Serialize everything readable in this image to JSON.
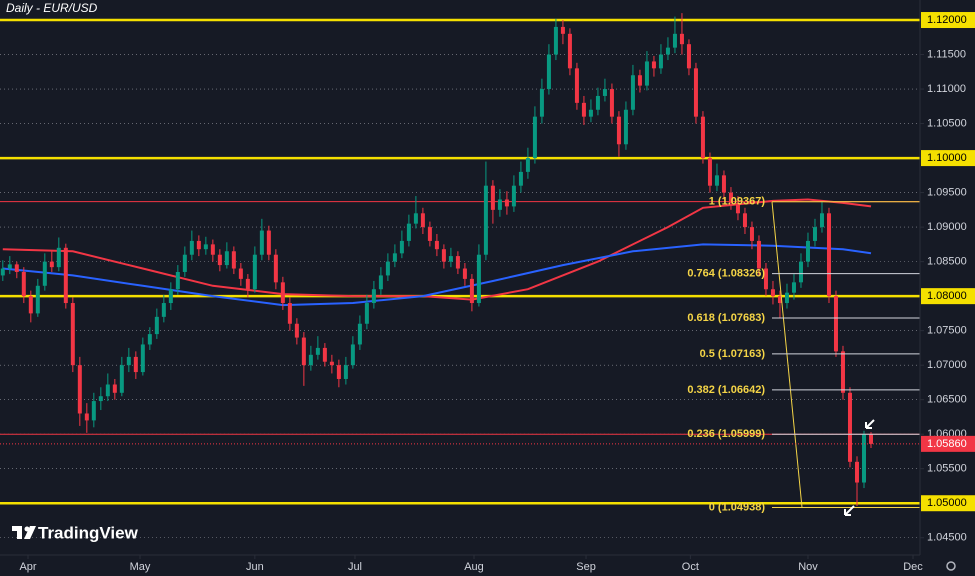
{
  "chart_data": {
    "type": "candlestick",
    "title": "Daily - EUR/USD",
    "logo": "TradingView",
    "xlim": [
      -0.4,
      131
    ],
    "ylim": [
      1.0425,
      1.1229
    ],
    "xticks": [
      {
        "value": 3.6,
        "label": "Apr"
      },
      {
        "value": 19.6,
        "label": "May"
      },
      {
        "value": 36,
        "label": "Jun"
      },
      {
        "value": 50.3,
        "label": "Jul"
      },
      {
        "value": 67.3,
        "label": "Aug"
      },
      {
        "value": 83.3,
        "label": "Sep"
      },
      {
        "value": 98.2,
        "label": "Oct"
      },
      {
        "value": 115,
        "label": "Nov"
      },
      {
        "value": 130,
        "label": "Dec"
      }
    ],
    "yticks": [
      {
        "value": 1.045,
        "label": "1.04500"
      },
      {
        "value": 1.05,
        "label": "1.05000"
      },
      {
        "value": 1.055,
        "label": "1.05500"
      },
      {
        "value": 1.06,
        "label": "1.06000"
      },
      {
        "value": 1.065,
        "label": "1.06500"
      },
      {
        "value": 1.07,
        "label": "1.07000"
      },
      {
        "value": 1.075,
        "label": "1.07500"
      },
      {
        "value": 1.08,
        "label": "1.08000"
      },
      {
        "value": 1.085,
        "label": "1.08500"
      },
      {
        "value": 1.09,
        "label": "1.09000"
      },
      {
        "value": 1.095,
        "label": "1.09500"
      },
      {
        "value": 1.1,
        "label": "1.10000"
      },
      {
        "value": 1.105,
        "label": "1.10500"
      },
      {
        "value": 1.11,
        "label": "1.11000"
      },
      {
        "value": 1.115,
        "label": "1.11500"
      },
      {
        "value": 1.12,
        "label": "1.12000"
      }
    ],
    "grid": true,
    "up_color": "#089981",
    "down_color": "#f23645",
    "key_levels": [
      1.12,
      1.1,
      1.08,
      1.05
    ],
    "key_color": "#f5e000",
    "red_lines": [
      1.0937,
      1.06
    ],
    "last_price": {
      "value": 1.0586,
      "label": "1.05860"
    },
    "ohlc": [
      [
        1.083,
        1.0852,
        1.0822,
        1.084
      ],
      [
        1.084,
        1.0858,
        1.0832,
        1.0846
      ],
      [
        1.0846,
        1.085,
        1.0826,
        1.0835
      ],
      [
        1.0835,
        1.0842,
        1.079,
        1.08
      ],
      [
        1.08,
        1.0808,
        1.0762,
        1.0775
      ],
      [
        1.0775,
        1.0825,
        1.077,
        1.0815
      ],
      [
        1.0815,
        1.0862,
        1.0808,
        1.085
      ],
      [
        1.085,
        1.0866,
        1.0835,
        1.0842
      ],
      [
        1.0842,
        1.0885,
        1.0836,
        1.087
      ],
      [
        1.087,
        1.0876,
        1.0782,
        1.079
      ],
      [
        1.079,
        1.0798,
        1.069,
        1.07
      ],
      [
        1.07,
        1.0712,
        1.0612,
        1.063
      ],
      [
        1.063,
        1.0645,
        1.0602,
        1.062
      ],
      [
        1.062,
        1.066,
        1.061,
        1.0648
      ],
      [
        1.0648,
        1.0668,
        1.0635,
        1.0655
      ],
      [
        1.0655,
        1.0688,
        1.0648,
        1.0672
      ],
      [
        1.0672,
        1.068,
        1.065,
        1.066
      ],
      [
        1.066,
        1.0712,
        1.0655,
        1.07
      ],
      [
        1.07,
        1.0725,
        1.069,
        1.0712
      ],
      [
        1.0712,
        1.072,
        1.068,
        1.069
      ],
      [
        1.069,
        1.074,
        1.0685,
        1.073
      ],
      [
        1.073,
        1.0755,
        1.0722,
        1.0745
      ],
      [
        1.0745,
        1.0782,
        1.0738,
        1.077
      ],
      [
        1.077,
        1.0802,
        1.0762,
        1.079
      ],
      [
        1.079,
        1.082,
        1.078,
        1.081
      ],
      [
        1.081,
        1.0845,
        1.0802,
        1.0835
      ],
      [
        1.0835,
        1.0872,
        1.0828,
        1.086
      ],
      [
        1.086,
        1.0895,
        1.0852,
        1.088
      ],
      [
        1.088,
        1.0888,
        1.0858,
        1.0868
      ],
      [
        1.0868,
        1.0886,
        1.086,
        1.0875
      ],
      [
        1.0875,
        1.0882,
        1.085,
        1.086
      ],
      [
        1.086,
        1.0868,
        1.0836,
        1.0845
      ],
      [
        1.0845,
        1.0878,
        1.084,
        1.0865
      ],
      [
        1.0865,
        1.0872,
        1.0832,
        1.084
      ],
      [
        1.084,
        1.0848,
        1.0815,
        1.0825
      ],
      [
        1.0825,
        1.0832,
        1.0798,
        1.081
      ],
      [
        1.081,
        1.0872,
        1.0805,
        1.086
      ],
      [
        1.086,
        1.0912,
        1.0852,
        1.0895
      ],
      [
        1.0895,
        1.0902,
        1.0852,
        1.086
      ],
      [
        1.086,
        1.0868,
        1.081,
        1.082
      ],
      [
        1.082,
        1.0828,
        1.078,
        1.079
      ],
      [
        1.079,
        1.0798,
        1.075,
        1.076
      ],
      [
        1.076,
        1.0768,
        1.073,
        1.074
      ],
      [
        1.074,
        1.0748,
        1.067,
        1.07
      ],
      [
        1.07,
        1.0728,
        1.0692,
        1.0715
      ],
      [
        1.0715,
        1.0742,
        1.0708,
        1.0725
      ],
      [
        1.0725,
        1.0732,
        1.0698,
        1.0705
      ],
      [
        1.0705,
        1.0715,
        1.0688,
        1.07
      ],
      [
        1.07,
        1.0708,
        1.0668,
        1.068
      ],
      [
        1.068,
        1.0712,
        1.0672,
        1.07
      ],
      [
        1.07,
        1.0742,
        1.0695,
        1.073
      ],
      [
        1.073,
        1.0772,
        1.0722,
        1.076
      ],
      [
        1.076,
        1.0802,
        1.0752,
        1.079
      ],
      [
        1.079,
        1.0822,
        1.0782,
        1.081
      ],
      [
        1.081,
        1.0842,
        1.0802,
        1.083
      ],
      [
        1.083,
        1.0862,
        1.0822,
        1.085
      ],
      [
        1.085,
        1.0875,
        1.0842,
        1.0862
      ],
      [
        1.0862,
        1.0895,
        1.0855,
        1.088
      ],
      [
        1.088,
        1.0918,
        1.0872,
        1.0905
      ],
      [
        1.0905,
        1.0945,
        1.0898,
        1.092
      ],
      [
        1.092,
        1.0928,
        1.089,
        1.09
      ],
      [
        1.09,
        1.0908,
        1.0872,
        1.088
      ],
      [
        1.088,
        1.089,
        1.0858,
        1.0868
      ],
      [
        1.0868,
        1.0875,
        1.084,
        1.085
      ],
      [
        1.085,
        1.087,
        1.0842,
        1.0858
      ],
      [
        1.0858,
        1.0865,
        1.0832,
        1.084
      ],
      [
        1.084,
        1.0848,
        1.0815,
        1.0825
      ],
      [
        1.0825,
        1.0832,
        1.0778,
        1.079
      ],
      [
        1.079,
        1.0875,
        1.0785,
        1.086
      ],
      [
        1.086,
        1.0995,
        1.0852,
        1.096
      ],
      [
        1.096,
        1.0968,
        1.0905,
        1.0925
      ],
      [
        1.0925,
        1.0955,
        1.0915,
        1.094
      ],
      [
        1.094,
        1.0952,
        1.0918,
        1.093
      ],
      [
        1.093,
        1.0975,
        1.0922,
        1.096
      ],
      [
        1.096,
        1.0995,
        1.095,
        1.098
      ],
      [
        1.098,
        1.1015,
        1.097,
        1.1
      ],
      [
        1.1,
        1.1075,
        1.0992,
        1.106
      ],
      [
        1.106,
        1.1115,
        1.105,
        1.11
      ],
      [
        1.11,
        1.1165,
        1.1092,
        1.115
      ],
      [
        1.115,
        1.1202,
        1.1142,
        1.119
      ],
      [
        1.119,
        1.12,
        1.1165,
        1.118
      ],
      [
        1.118,
        1.1188,
        1.112,
        1.113
      ],
      [
        1.113,
        1.1138,
        1.107,
        1.108
      ],
      [
        1.108,
        1.109,
        1.1048,
        1.106
      ],
      [
        1.106,
        1.1085,
        1.1052,
        1.107
      ],
      [
        1.107,
        1.1102,
        1.1062,
        1.109
      ],
      [
        1.109,
        1.1115,
        1.1082,
        1.11
      ],
      [
        1.11,
        1.1108,
        1.105,
        1.106
      ],
      [
        1.106,
        1.1068,
        1.1002,
        1.102
      ],
      [
        1.102,
        1.1082,
        1.1012,
        1.107
      ],
      [
        1.107,
        1.1135,
        1.1062,
        1.112
      ],
      [
        1.112,
        1.1128,
        1.1095,
        1.1105
      ],
      [
        1.1105,
        1.1155,
        1.1098,
        1.114
      ],
      [
        1.114,
        1.1148,
        1.1118,
        1.113
      ],
      [
        1.113,
        1.1165,
        1.1122,
        1.115
      ],
      [
        1.115,
        1.1175,
        1.1142,
        1.116
      ],
      [
        1.116,
        1.1205,
        1.1152,
        1.118
      ],
      [
        1.118,
        1.121,
        1.115,
        1.1165
      ],
      [
        1.1165,
        1.1172,
        1.112,
        1.113
      ],
      [
        1.113,
        1.1138,
        1.105,
        1.106
      ],
      [
        1.106,
        1.1068,
        1.0992,
        1.1
      ],
      [
        1.1,
        1.1008,
        1.095,
        1.096
      ],
      [
        1.096,
        1.0992,
        1.0952,
        1.0975
      ],
      [
        1.0975,
        1.0982,
        1.094,
        1.095
      ],
      [
        1.095,
        1.0958,
        1.0925,
        1.0935
      ],
      [
        1.0935,
        1.0945,
        1.091,
        1.092
      ],
      [
        1.092,
        1.0928,
        1.089,
        1.09
      ],
      [
        1.09,
        1.0908,
        1.0868,
        1.088
      ],
      [
        1.088,
        1.0888,
        1.083,
        1.084
      ],
      [
        1.084,
        1.0848,
        1.08,
        1.081
      ],
      [
        1.081,
        1.0822,
        1.0788,
        1.08
      ],
      [
        1.08,
        1.0808,
        1.0768,
        1.079
      ],
      [
        1.079,
        1.0818,
        1.0782,
        1.0805
      ],
      [
        1.0805,
        1.0832,
        1.0795,
        1.082
      ],
      [
        1.082,
        1.0862,
        1.0812,
        1.085
      ],
      [
        1.085,
        1.0892,
        1.0842,
        1.088
      ],
      [
        1.088,
        1.0912,
        1.0872,
        1.09
      ],
      [
        1.09,
        1.0937,
        1.0892,
        1.092
      ],
      [
        1.092,
        1.0928,
        1.079,
        1.08
      ],
      [
        1.08,
        1.0808,
        1.0712,
        1.072
      ],
      [
        1.072,
        1.0728,
        1.065,
        1.066
      ],
      [
        1.066,
        1.0668,
        1.0552,
        1.056
      ],
      [
        1.056,
        1.0568,
        1.0496,
        1.053
      ],
      [
        1.053,
        1.0605,
        1.0522,
        1.06
      ],
      [
        1.06,
        1.0603,
        1.058,
        1.0586
      ]
    ],
    "moving_averages": [
      {
        "color": "#f23645",
        "x": [
          0,
          10,
          20,
          30,
          40,
          50,
          60,
          67,
          75,
          85,
          95,
          100,
          110,
          115,
          120,
          124
        ],
        "values": [
          1.0868,
          1.0865,
          1.084,
          1.0815,
          1.0803,
          1.08,
          1.08,
          1.0795,
          1.081,
          1.085,
          1.09,
          1.0928,
          1.0938,
          1.094,
          1.0935,
          1.093
        ]
      },
      {
        "color": "#2962ff",
        "x": [
          0,
          10,
          20,
          30,
          40,
          50,
          60,
          70,
          80,
          90,
          100,
          110,
          120,
          124
        ],
        "values": [
          1.084,
          1.083,
          1.0815,
          1.08,
          1.0787,
          1.079,
          1.08,
          1.0822,
          1.0845,
          1.0865,
          1.0875,
          1.0873,
          1.0868,
          1.0862
        ]
      }
    ],
    "fib": {
      "color": "#f5d547",
      "levels": [
        {
          "label": "1 (1.09367)",
          "value": 1.09367
        },
        {
          "label": "0.764 (1.08326)",
          "value": 1.08326
        },
        {
          "label": "0.618 (1.07683)",
          "value": 1.07683
        },
        {
          "label": "0.5 (1.07163)",
          "value": 1.07163
        },
        {
          "label": "0.382 (1.06642)",
          "value": 1.06642
        },
        {
          "label": "0.236 (1.05999)",
          "value": 1.05999
        },
        {
          "label": "0 (1.04938)",
          "value": 1.04938
        }
      ]
    }
  }
}
